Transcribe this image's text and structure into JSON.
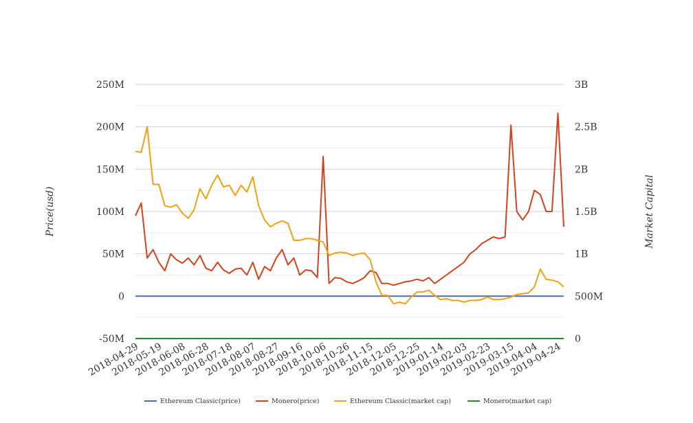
{
  "chart_data": {
    "type": "line",
    "ylabel": "Price(usd)",
    "y2label": "Market Capital",
    "ylim": [
      -50000000,
      250000000
    ],
    "y2lim": [
      0,
      3000000000
    ],
    "yticks": [
      "-50M",
      "0",
      "50M",
      "100M",
      "150M",
      "200M",
      "250M"
    ],
    "y2ticks": [
      "0",
      "500M",
      "1B",
      "1.5B",
      "2B",
      "2.5B",
      "3B"
    ],
    "grid": true,
    "legend": "bottom",
    "x": [
      "2018-04-29",
      "2018-05-04",
      "2018-05-09",
      "2018-05-14",
      "2018-05-19",
      "2018-05-24",
      "2018-05-29",
      "2018-06-03",
      "2018-06-08",
      "2018-06-13",
      "2018-06-18",
      "2018-06-23",
      "2018-06-28",
      "2018-07-03",
      "2018-07-08",
      "2018-07-13",
      "2018-07-18",
      "2018-07-23",
      "2018-07-28",
      "2018-08-02",
      "2018-08-07",
      "2018-08-12",
      "2018-08-17",
      "2018-08-22",
      "2018-08-27",
      "2018-09-01",
      "2018-09-06",
      "2018-09-11",
      "2018-09-16",
      "2018-09-21",
      "2018-09-26",
      "2018-10-01",
      "2018-10-06",
      "2018-10-11",
      "2018-10-16",
      "2018-10-21",
      "2018-10-26",
      "2018-10-31",
      "2018-11-05",
      "2018-11-10",
      "2018-11-15",
      "2018-11-20",
      "2018-11-25",
      "2018-11-30",
      "2018-12-05",
      "2018-12-10",
      "2018-12-15",
      "2018-12-20",
      "2018-12-25",
      "2018-12-30",
      "2019-01-04",
      "2019-01-09",
      "2019-01-14",
      "2019-01-19",
      "2019-01-24",
      "2019-01-29",
      "2019-02-03",
      "2019-02-08",
      "2019-02-13",
      "2019-02-18",
      "2019-02-23",
      "2019-02-28",
      "2019-03-05",
      "2019-03-10",
      "2019-03-15",
      "2019-03-20",
      "2019-03-25",
      "2019-03-30",
      "2019-04-04",
      "2019-04-09",
      "2019-04-14",
      "2019-04-19",
      "2019-04-24",
      "2019-04-29"
    ],
    "xticks": [
      "2018-04-29",
      "2018-05-19",
      "2018-06-08",
      "2018-06-28",
      "2018-07-18",
      "2018-08-07",
      "2018-08-27",
      "2018-09-16",
      "2018-10-06",
      "2018-10-26",
      "2018-11-15",
      "2018-12-05",
      "2018-12-25",
      "2019-01-14",
      "2019-02-03",
      "2019-02-23",
      "2019-03-15",
      "2019-04-04",
      "2019-04-24"
    ],
    "series": [
      {
        "name": "Ethereum Classic(price)",
        "axis": "left",
        "color": "#3f6fbf",
        "values": [
          0,
          0,
          0,
          0,
          0,
          0,
          0,
          0,
          0,
          0,
          0,
          0,
          0,
          0,
          0,
          0,
          0,
          0,
          0,
          0,
          0,
          0,
          0,
          0,
          0,
          0,
          0,
          0,
          0,
          0,
          0,
          0,
          0,
          0,
          0,
          0,
          0,
          0,
          0,
          0,
          0,
          0,
          0,
          0,
          0,
          0,
          0,
          0,
          0,
          0,
          0,
          0,
          0,
          0,
          0,
          0,
          0,
          0,
          0,
          0,
          0,
          0,
          0,
          0,
          0,
          0,
          0,
          0,
          0,
          0,
          0,
          0,
          0,
          0
        ]
      },
      {
        "name": "Monero(price)",
        "axis": "left",
        "color": "#d4411c",
        "unit": "M",
        "values": [
          95,
          110,
          45,
          55,
          40,
          30,
          50,
          43,
          39,
          45,
          37,
          48,
          33,
          30,
          40,
          31,
          27,
          32,
          33,
          25,
          40,
          20,
          35,
          30,
          45,
          55,
          37,
          45,
          25,
          31,
          30,
          22,
          165,
          15,
          22,
          21,
          17,
          15,
          18,
          22,
          30,
          28,
          15,
          15,
          13,
          15,
          17,
          18,
          20,
          18,
          22,
          15,
          20,
          25,
          30,
          35,
          40,
          50,
          55,
          62,
          66,
          70,
          68,
          70,
          202,
          100,
          90,
          100,
          125,
          120,
          100,
          100,
          216,
          82
        ]
      },
      {
        "name": "Ethereum Classic(market cap)",
        "axis": "right",
        "color": "#f5a00f",
        "unit": "B",
        "values": [
          2.21,
          2.2,
          2.5,
          1.82,
          1.82,
          1.57,
          1.55,
          1.58,
          1.48,
          1.42,
          1.52,
          1.77,
          1.65,
          1.81,
          1.93,
          1.79,
          1.81,
          1.69,
          1.81,
          1.73,
          1.91,
          1.57,
          1.4,
          1.32,
          1.36,
          1.39,
          1.36,
          1.16,
          1.16,
          1.18,
          1.18,
          1.16,
          1.14,
          0.98,
          1.01,
          1.02,
          1.01,
          0.98,
          1.0,
          1.01,
          0.93,
          0.67,
          0.51,
          0.51,
          0.41,
          0.43,
          0.41,
          0.49,
          0.55,
          0.55,
          0.57,
          0.51,
          0.46,
          0.47,
          0.45,
          0.45,
          0.43,
          0.45,
          0.45,
          0.46,
          0.49,
          0.46,
          0.46,
          0.47,
          0.49,
          0.52,
          0.53,
          0.54,
          0.61,
          0.82,
          0.7,
          0.69,
          0.67,
          0.61
        ]
      },
      {
        "name": "Monero(market cap)",
        "axis": "right",
        "color": "#1e8c1e",
        "values": [
          0,
          0,
          0,
          0,
          0,
          0,
          0,
          0,
          0,
          0,
          0,
          0,
          0,
          0,
          0,
          0,
          0,
          0,
          0,
          0,
          0,
          0,
          0,
          0,
          0,
          0,
          0,
          0,
          0,
          0,
          0,
          0,
          0,
          0,
          0,
          0,
          0,
          0,
          0,
          0,
          0,
          0,
          0,
          0,
          0,
          0,
          0,
          0,
          0,
          0,
          0,
          0,
          0,
          0,
          0,
          0,
          0,
          0,
          0,
          0,
          0,
          0,
          0,
          0,
          0,
          0,
          0,
          0,
          0,
          0,
          0,
          0,
          0,
          0
        ]
      }
    ]
  }
}
